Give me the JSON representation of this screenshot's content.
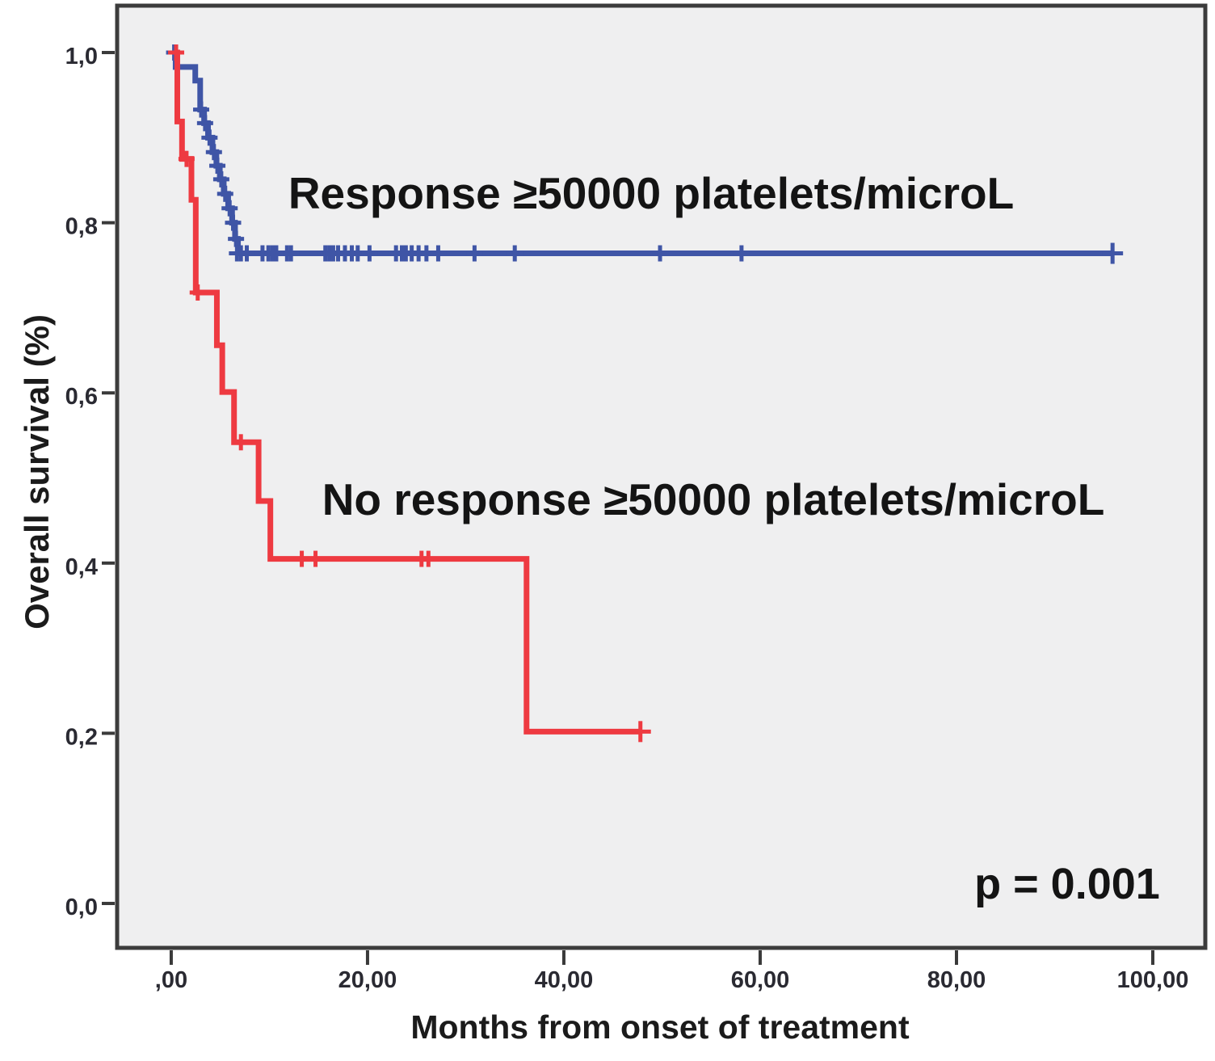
{
  "chart_data": {
    "type": "line",
    "subtype": "kaplan-meier-step",
    "title": "",
    "xlabel": "Months from onset of treatment",
    "ylabel": "Overall survival (%)",
    "p_value": "p = 0.001",
    "xlim": [
      -5.51,
      105.35
    ],
    "ylim": [
      -0.0522,
      1.0551
    ],
    "grid": false,
    "legend": "in-plot text annotations",
    "x_ticks": [
      {
        "v": 0,
        "label": ",00"
      },
      {
        "v": 20,
        "label": "20,00"
      },
      {
        "v": 40,
        "label": "40,00"
      },
      {
        "v": 60,
        "label": "60,00"
      },
      {
        "v": 80,
        "label": "80,00"
      },
      {
        "v": 100,
        "label": "100,00"
      }
    ],
    "y_ticks": [
      {
        "v": 0.0,
        "label": "0,0"
      },
      {
        "v": 0.2,
        "label": "0,2"
      },
      {
        "v": 0.4,
        "label": "0,4"
      },
      {
        "v": 0.6,
        "label": "0,6"
      },
      {
        "v": 0.8,
        "label": "0,8"
      },
      {
        "v": 1.0,
        "label": "1,0"
      }
    ],
    "series": [
      {
        "name": "Response ≥50000 platelets/microL",
        "color": "#3f55a6",
        "steps": [
          [
            0.3,
            1.0
          ],
          [
            0.45,
            0.983
          ],
          [
            2.45,
            0.967
          ],
          [
            2.95,
            0.933
          ],
          [
            3.35,
            0.917
          ],
          [
            3.75,
            0.9
          ],
          [
            4.2,
            0.883
          ],
          [
            4.6,
            0.867
          ],
          [
            4.95,
            0.851
          ],
          [
            5.35,
            0.834
          ],
          [
            5.8,
            0.817
          ],
          [
            6.2,
            0.8
          ],
          [
            6.5,
            0.781
          ],
          [
            6.8,
            0.764
          ]
        ],
        "end": 95.9,
        "censors": [
          [
            0.3,
            1.0
          ],
          [
            3.05,
            0.933
          ],
          [
            3.45,
            0.917
          ],
          [
            3.9,
            0.9
          ],
          [
            4.35,
            0.883
          ],
          [
            4.7,
            0.867
          ],
          [
            5.1,
            0.851
          ],
          [
            5.5,
            0.834
          ],
          [
            5.95,
            0.817
          ],
          [
            6.3,
            0.8
          ],
          [
            6.6,
            0.781
          ],
          [
            6.7,
            0.764
          ],
          [
            7.1,
            0.764
          ],
          [
            7.7,
            0.764
          ],
          [
            9.3,
            0.764
          ],
          [
            9.9,
            0.764
          ],
          [
            10.3,
            0.764
          ],
          [
            10.7,
            0.764
          ],
          [
            11.8,
            0.764
          ],
          [
            12.2,
            0.764
          ],
          [
            15.7,
            0.764
          ],
          [
            16.1,
            0.764
          ],
          [
            16.5,
            0.764
          ],
          [
            17.0,
            0.764
          ],
          [
            17.7,
            0.764
          ],
          [
            18.4,
            0.764
          ],
          [
            19.0,
            0.764
          ],
          [
            20.2,
            0.764
          ],
          [
            22.9,
            0.764
          ],
          [
            23.5,
            0.764
          ],
          [
            23.9,
            0.764
          ],
          [
            24.5,
            0.764
          ],
          [
            25.2,
            0.764
          ],
          [
            26.0,
            0.764
          ],
          [
            27.2,
            0.764
          ],
          [
            30.9,
            0.764
          ],
          [
            35.0,
            0.764
          ],
          [
            49.8,
            0.764
          ],
          [
            58.1,
            0.764
          ],
          [
            95.9,
            0.764
          ]
        ]
      },
      {
        "name": "No response ≥50000 platelets/microL",
        "color": "#ee3a41",
        "steps": [
          [
            0.55,
            1.0
          ],
          [
            0.62,
            0.919
          ],
          [
            1.1,
            0.875
          ],
          [
            2.06,
            0.827
          ],
          [
            2.5,
            0.718
          ],
          [
            4.65,
            0.656
          ],
          [
            5.2,
            0.601
          ],
          [
            6.4,
            0.542
          ],
          [
            8.9,
            0.473
          ],
          [
            10.1,
            0.405
          ],
          [
            36.2,
            0.202
          ]
        ],
        "end": 47.8,
        "censors": [
          [
            0.5,
            1.0
          ],
          [
            1.56,
            0.875
          ],
          [
            2.7,
            0.718
          ],
          [
            7.1,
            0.542
          ],
          [
            13.3,
            0.405
          ],
          [
            14.7,
            0.405
          ],
          [
            25.5,
            0.405
          ],
          [
            26.2,
            0.405
          ],
          [
            47.8,
            0.202
          ]
        ]
      }
    ]
  }
}
